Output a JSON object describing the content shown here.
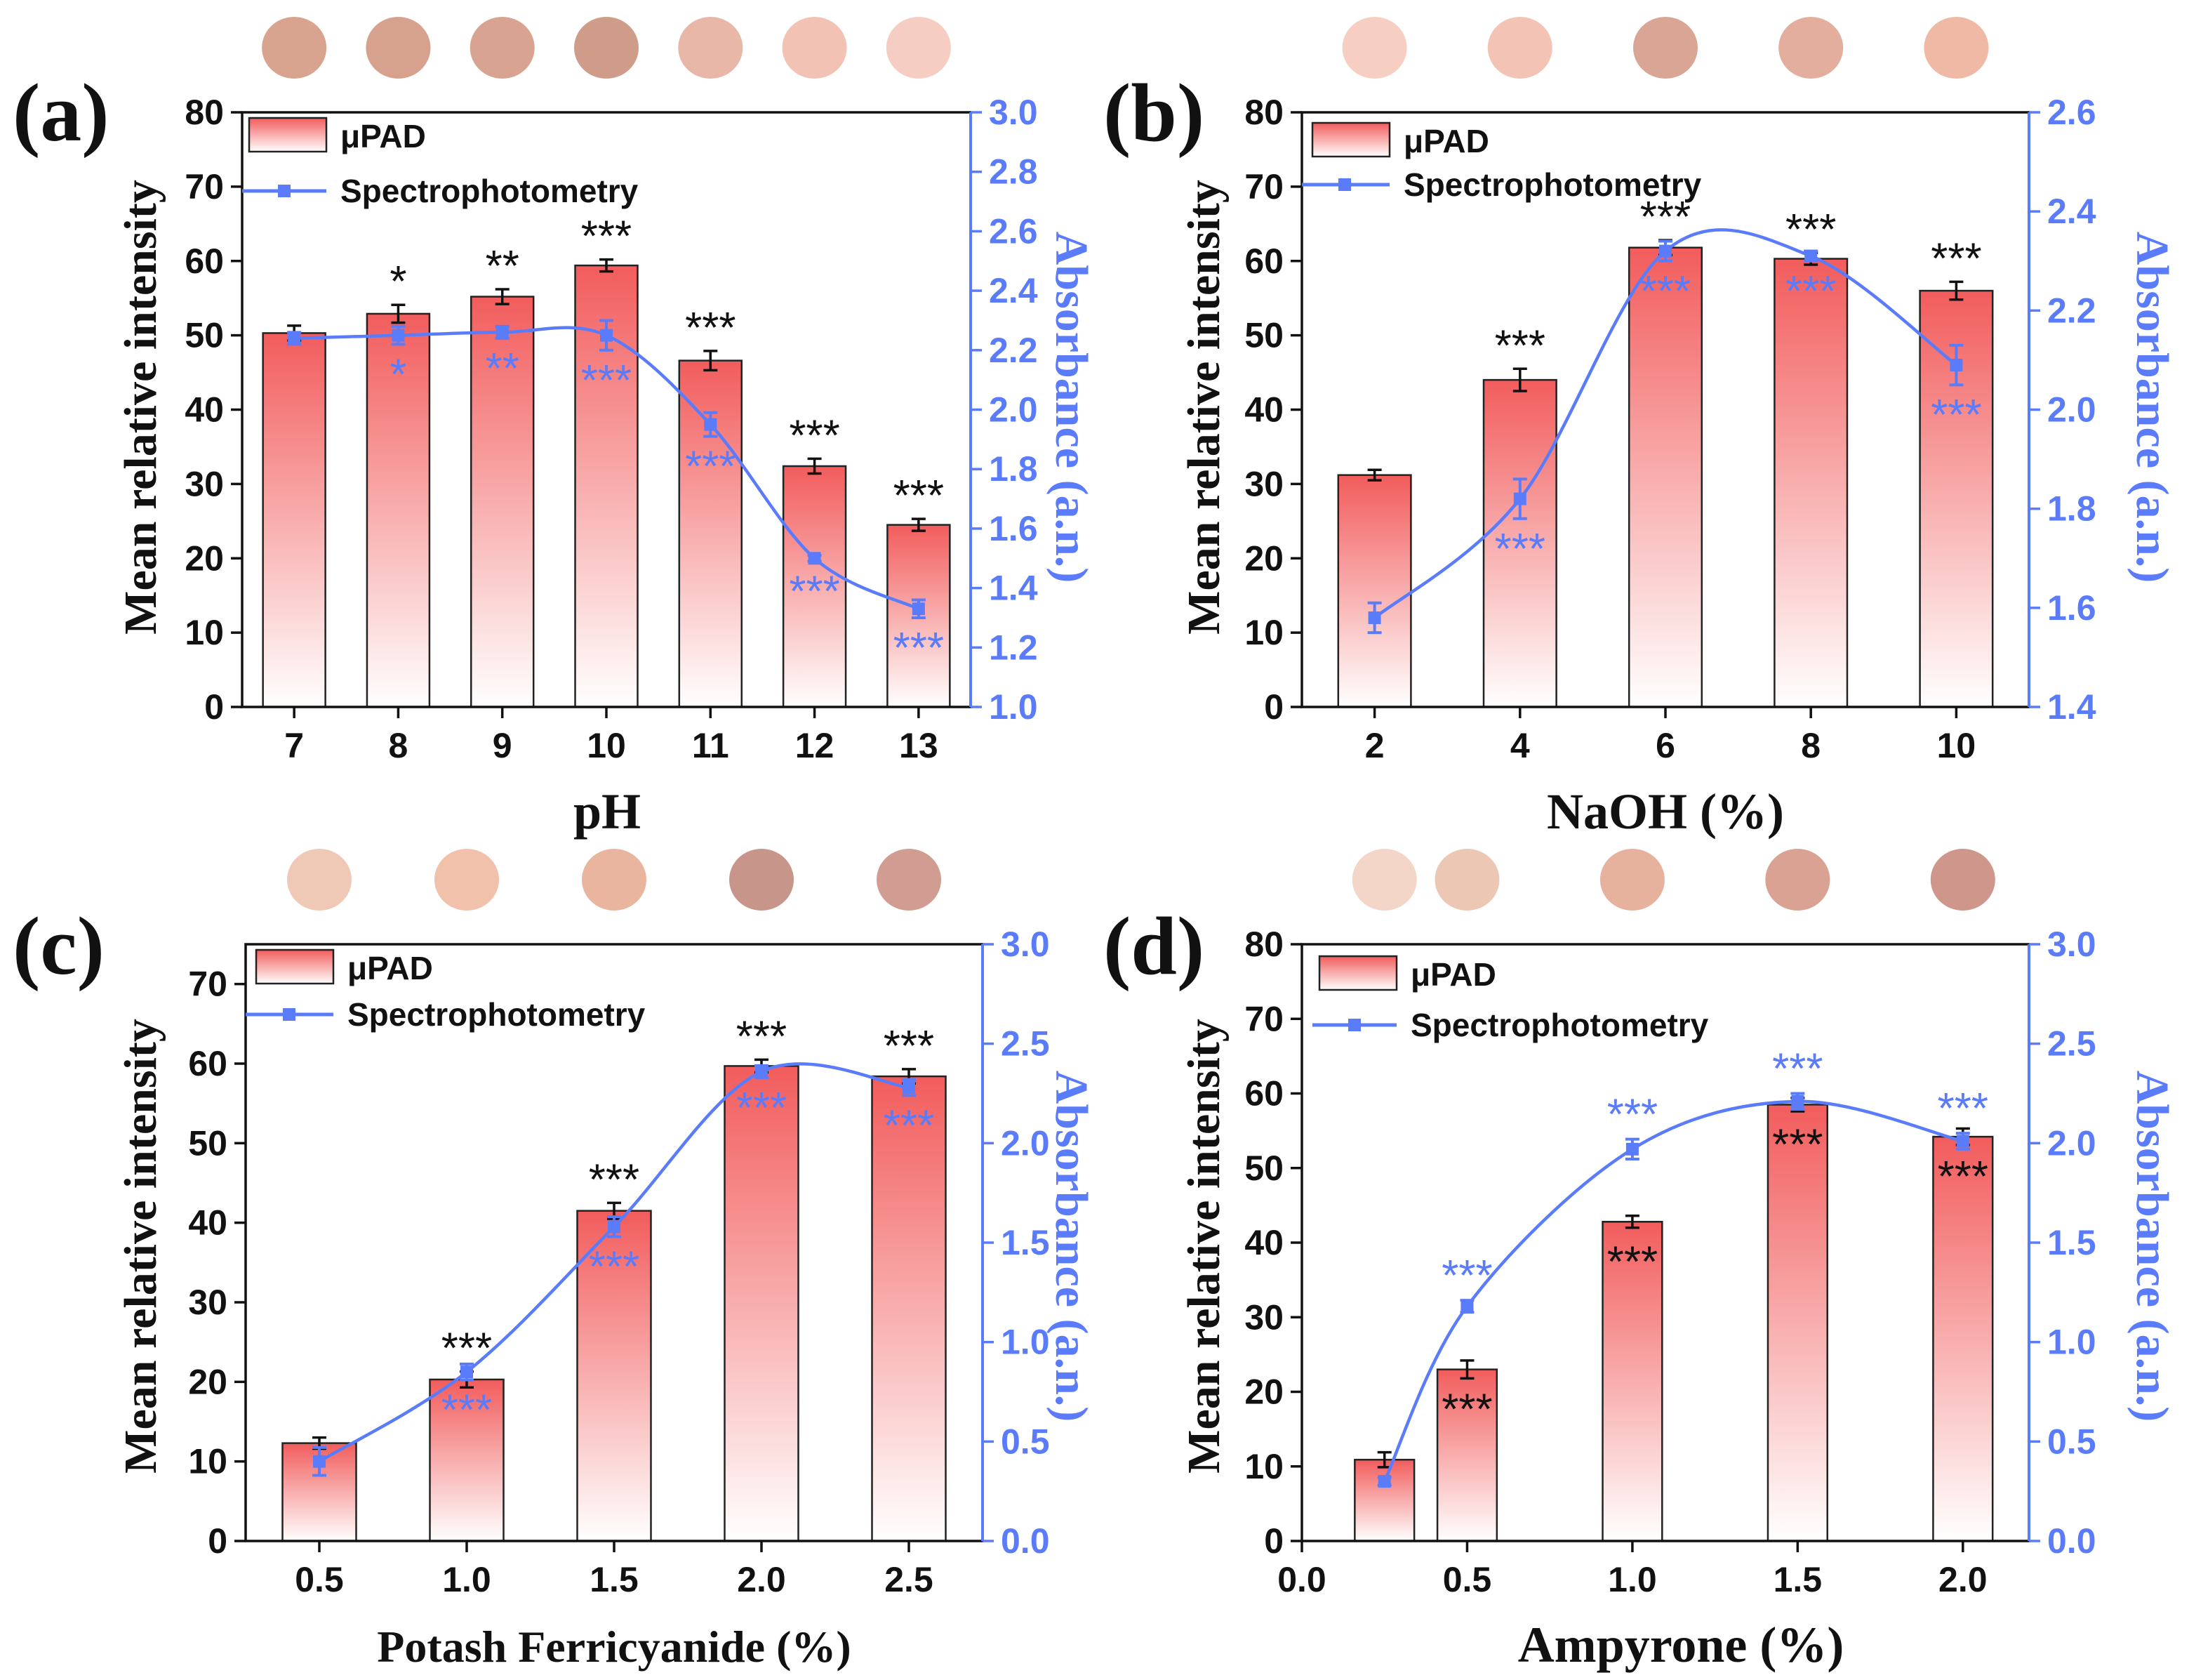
{
  "colors": {
    "bar_top": "#f25c5c",
    "bar_bottom": "#ffffff",
    "line": "#5b7cfa",
    "axis_right": "#5b7cfa",
    "text": "#111111"
  },
  "chart_data": [
    {
      "panel": "(a)",
      "type": "bar+line",
      "xlabel": "pH",
      "ylabel_left": "Mean relative intensity",
      "ylabel_right": "Absorbance (a.n.)",
      "categories": [
        "7",
        "8",
        "9",
        "10",
        "11",
        "12",
        "13"
      ],
      "x_numeric": false,
      "bar_width": 0.6,
      "ylim_left": [
        0,
        80
      ],
      "left_ticks": [
        "0",
        "10",
        "20",
        "30",
        "40",
        "50",
        "60",
        "70",
        "80"
      ],
      "ylim_right": [
        1.0,
        3.0
      ],
      "right_ticks": [
        "1.0",
        "1.2",
        "1.4",
        "1.6",
        "1.8",
        "2.0",
        "2.2",
        "2.4",
        "2.6",
        "2.8",
        "3.0"
      ],
      "legend": [
        "μPAD",
        "Spectrophotometry"
      ],
      "series": [
        {
          "name": "μPAD",
          "type": "bar",
          "values": [
            50.3,
            52.9,
            55.2,
            59.4,
            46.6,
            32.4,
            24.5
          ],
          "errors": [
            1.0,
            1.2,
            1.0,
            0.8,
            1.3,
            1.0,
            0.8
          ],
          "sig": [
            "",
            "*",
            "**",
            "***",
            "***",
            "***",
            "***"
          ]
        },
        {
          "name": "Spectrophotometry",
          "type": "line",
          "values": [
            2.24,
            2.25,
            2.26,
            2.25,
            1.95,
            1.5,
            1.33
          ],
          "errors": [
            0.02,
            0.03,
            0.02,
            0.05,
            0.04,
            0.01,
            0.03
          ],
          "sig": [
            "",
            "*",
            "**",
            "***",
            "***",
            "***",
            "***"
          ]
        }
      ],
      "swatches": [
        "#d9a48f",
        "#d6a28e",
        "#d8a491",
        "#cf9c89",
        "#e8b7a7",
        "#f2c2b4",
        "#f6cdc2"
      ]
    },
    {
      "panel": "(b)",
      "type": "bar+line",
      "xlabel": "NaOH (%)",
      "ylabel_left": "Mean relative intensity",
      "ylabel_right": "Absorbance (a.n.)",
      "categories": [
        "2",
        "4",
        "6",
        "8",
        "10"
      ],
      "x_numeric": false,
      "bar_width": 0.5,
      "ylim_left": [
        0,
        80
      ],
      "left_ticks": [
        "0",
        "10",
        "20",
        "30",
        "40",
        "50",
        "60",
        "70",
        "80"
      ],
      "ylim_right": [
        1.4,
        2.6
      ],
      "right_ticks": [
        "1.4",
        "1.6",
        "1.8",
        "2.0",
        "2.2",
        "2.4",
        "2.6"
      ],
      "legend": [
        "μPAD",
        "Spectrophotometry"
      ],
      "series": [
        {
          "name": "μPAD",
          "type": "bar",
          "values": [
            31.2,
            44.0,
            61.8,
            60.3,
            56.0
          ],
          "errors": [
            0.7,
            1.5,
            1.0,
            0.8,
            1.2
          ],
          "sig": [
            "",
            "***",
            "***",
            "***",
            "***"
          ]
        },
        {
          "name": "Spectrophotometry",
          "type": "line",
          "values": [
            1.58,
            1.82,
            2.32,
            2.31,
            2.09
          ],
          "errors": [
            0.03,
            0.04,
            0.02,
            0.01,
            0.04
          ],
          "sig": [
            "",
            "***",
            "***",
            "***",
            "***"
          ]
        }
      ],
      "swatches": [
        "#f6cfc2",
        "#f3c4b6",
        "#d9a594",
        "#e3ae9d",
        "#efb9a6"
      ]
    },
    {
      "panel": "(c)",
      "type": "bar+line",
      "xlabel": "Potash Ferricyanide (%)",
      "ylabel_left": "Mean relative intensity",
      "ylabel_right": "Absorbance (a.n.)",
      "categories": [
        "0.5",
        "1.0",
        "1.5",
        "2.0",
        "2.5"
      ],
      "x_numeric": false,
      "bar_width": 0.5,
      "ylim_left": [
        0,
        75
      ],
      "left_ticks": [
        "0",
        "10",
        "20",
        "30",
        "40",
        "50",
        "60",
        "70"
      ],
      "ylim_right": [
        0.0,
        3.0
      ],
      "right_ticks": [
        "0.0",
        "0.5",
        "1.0",
        "1.5",
        "2.0",
        "2.5",
        "3.0"
      ],
      "legend": [
        "μPAD",
        "Spectrophotometry"
      ],
      "series": [
        {
          "name": "μPAD",
          "type": "bar",
          "values": [
            12.3,
            20.3,
            41.5,
            59.7,
            58.4
          ],
          "errors": [
            0.7,
            1.0,
            1.0,
            0.8,
            0.9
          ],
          "sig": [
            "",
            "***",
            "***",
            "***",
            "***"
          ]
        },
        {
          "name": "Spectrophotometry",
          "type": "line",
          "values": [
            0.4,
            0.85,
            1.58,
            2.36,
            2.28
          ],
          "errors": [
            0.07,
            0.04,
            0.05,
            0.03,
            0.04
          ],
          "sig": [
            "",
            "***",
            "***",
            "***",
            "***"
          ]
        }
      ],
      "swatches": [
        "#f0c8b6",
        "#f1c1ab",
        "#e9b59f",
        "#c8958a",
        "#d19c91"
      ]
    },
    {
      "panel": "(d)",
      "type": "bar+line",
      "xlabel": "Ampyrone (%)",
      "ylabel_left": "Mean relative intensity",
      "ylabel_right": "Absorbance (a.n.)",
      "categories": [
        "0.0",
        "0.5",
        "1.0",
        "1.5",
        "2.0"
      ],
      "x_numeric": true,
      "xlim": [
        0.0,
        2.2
      ],
      "bar_x": [
        0.25,
        0.5,
        1.0,
        1.5,
        2.0
      ],
      "bar_width": 0.18,
      "ylim_left": [
        0,
        80
      ],
      "left_ticks": [
        "0",
        "10",
        "20",
        "30",
        "40",
        "50",
        "60",
        "70",
        "80"
      ],
      "ylim_right": [
        0.0,
        3.0
      ],
      "right_ticks": [
        "0.0",
        "0.5",
        "1.0",
        "1.5",
        "2.0",
        "2.5",
        "3.0"
      ],
      "legend": [
        "μPAD",
        "Spectrophotometry"
      ],
      "series": [
        {
          "name": "μPAD",
          "type": "bar",
          "values": [
            10.9,
            23.0,
            42.8,
            58.5,
            54.2
          ],
          "errors": [
            1.0,
            1.2,
            0.8,
            0.9,
            1.1
          ],
          "sig": [
            "",
            "***",
            "***",
            "***",
            "***"
          ]
        },
        {
          "name": "Spectrophotometry",
          "type": "line",
          "values": [
            0.3,
            1.18,
            1.97,
            2.21,
            2.01
          ],
          "errors": [
            0.02,
            0.03,
            0.05,
            0.04,
            0.04
          ],
          "sig": [
            "",
            "***",
            "***",
            "***",
            "***"
          ]
        }
      ],
      "swatches": [
        "#f4d6c8",
        "#ecc7b4",
        "#e6b29e",
        "#d9a293",
        "#cf978b"
      ]
    }
  ]
}
